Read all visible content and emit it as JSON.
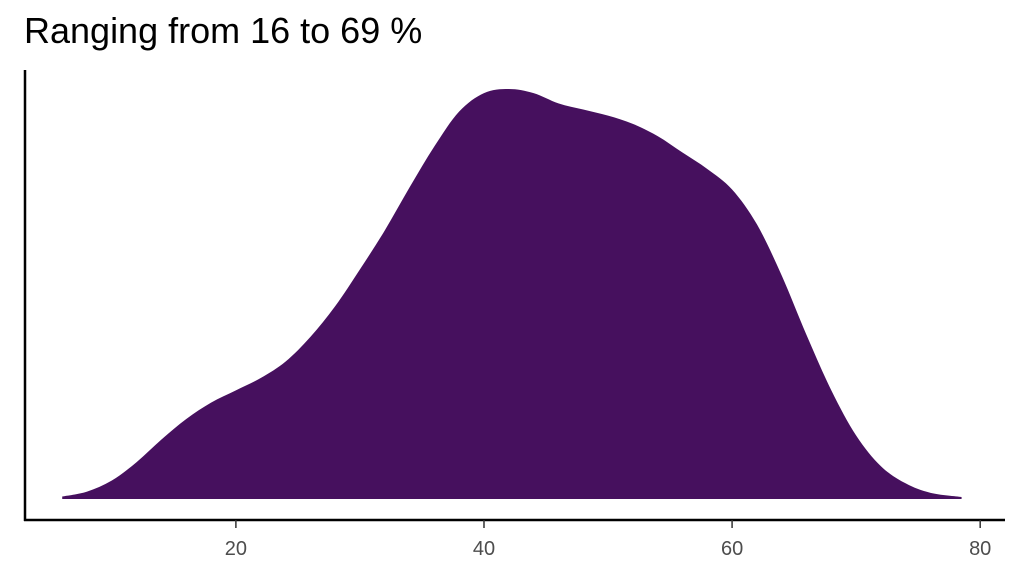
{
  "chart_data": {
    "type": "area",
    "title": "Ranging from 16 to 69 %",
    "xlabel": "",
    "ylabel": "",
    "x_ticks": [
      20,
      40,
      60,
      80
    ],
    "xlim": [
      3,
      82
    ],
    "ylim": [
      0,
      1.05
    ],
    "grid": false,
    "fill_color": "#46105e",
    "series": [
      {
        "x": [
          6,
          8,
          10,
          12,
          14,
          16,
          18,
          20,
          22,
          24,
          26,
          28,
          30,
          32,
          34,
          36,
          38,
          40,
          42,
          44,
          46,
          48,
          50,
          52,
          54,
          56,
          58,
          60,
          62,
          64,
          66,
          68,
          70,
          72,
          74,
          76,
          78.5
        ],
        "y": [
          0.006,
          0.018,
          0.045,
          0.09,
          0.145,
          0.195,
          0.235,
          0.265,
          0.295,
          0.335,
          0.395,
          0.47,
          0.56,
          0.655,
          0.76,
          0.86,
          0.945,
          0.99,
          1.0,
          0.99,
          0.965,
          0.95,
          0.935,
          0.915,
          0.885,
          0.845,
          0.805,
          0.755,
          0.67,
          0.545,
          0.4,
          0.265,
          0.155,
          0.08,
          0.038,
          0.015,
          0.005
        ]
      }
    ]
  }
}
